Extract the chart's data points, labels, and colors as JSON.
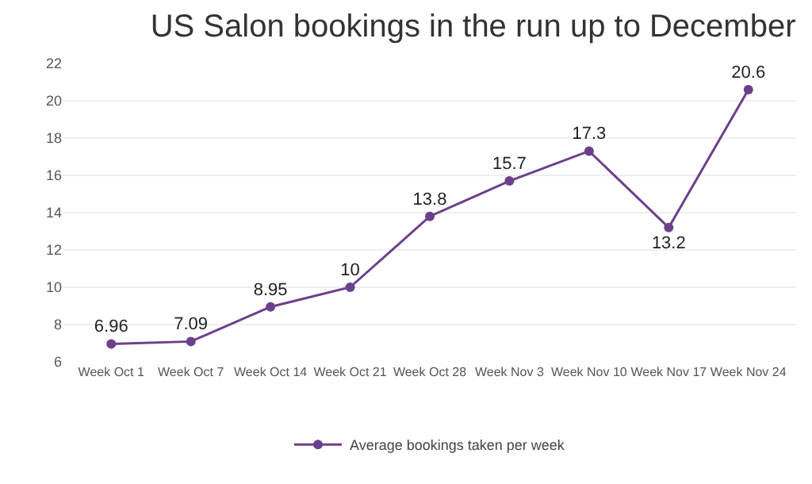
{
  "chart_data": {
    "type": "line",
    "title": "US Salon bookings in the run up to December",
    "categories": [
      "Week Oct 1",
      "Week Oct 7",
      "Week Oct 14",
      "Week Oct 21",
      "Week Oct 28",
      "Week Nov 3",
      "Week Nov 10",
      "Week Nov 17",
      "Week Nov 24"
    ],
    "series": [
      {
        "name": "Average bookings taken per week",
        "color": "#6b3f8a",
        "values": [
          6.96,
          7.09,
          8.95,
          10,
          13.8,
          15.7,
          17.3,
          13.2,
          20.6
        ]
      }
    ],
    "ylim": [
      6,
      22
    ],
    "yticks": [
      6,
      8,
      10,
      12,
      14,
      16,
      18,
      20,
      22
    ],
    "grid": "y",
    "legend": "bottom",
    "marker": "circle",
    "data_labels": true
  }
}
